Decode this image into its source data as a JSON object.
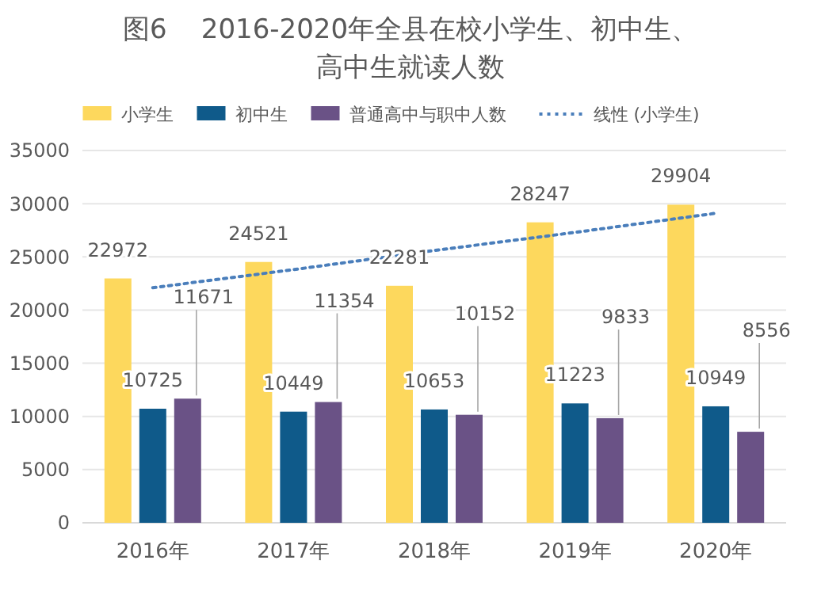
{
  "chart_data": {
    "type": "bar",
    "title": "图6    2016-2020年全县在校小学生、初中生、高中生就读人数",
    "categories": [
      "2016年",
      "2017年",
      "2018年",
      "2019年",
      "2020年"
    ],
    "series": [
      {
        "name": "小学生",
        "color": "#fdd85d",
        "values": [
          22972,
          24521,
          22281,
          28247,
          29904
        ],
        "value_labels": [
          "22972",
          "24521",
          "22281",
          "28247",
          "29904"
        ]
      },
      {
        "name": "初中生",
        "color": "#0f5a8a",
        "values": [
          10725,
          10449,
          10653,
          11223,
          10949
        ],
        "value_labels": [
          "10725",
          "10449",
          "10653",
          "11223",
          "10949"
        ]
      },
      {
        "name": "普通高中与职中人数",
        "color": "#6a5286",
        "values": [
          11671,
          11354,
          10152,
          9833,
          8556
        ],
        "value_labels": [
          "11671",
          "11354",
          "10152",
          "9833",
          "8556"
        ]
      },
      {
        "name": "线性 (小学生)",
        "type": "line",
        "color": "#4a7ebb",
        "line_style": "dotted",
        "values": [
          22100,
          23800,
          25600,
          27300,
          29100
        ]
      }
    ],
    "ylim": [
      0,
      35000
    ],
    "yticks": [
      0,
      5000,
      10000,
      15000,
      20000,
      25000,
      30000,
      35000
    ],
    "grid": "y",
    "legend": "top"
  }
}
